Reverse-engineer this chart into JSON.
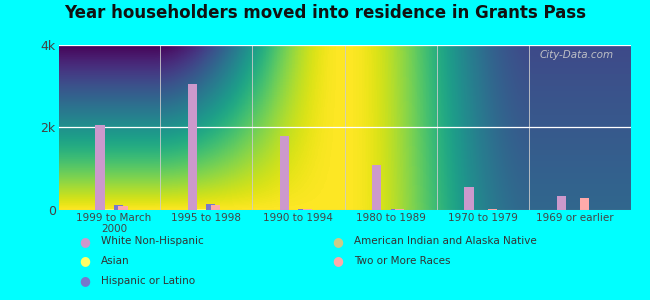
{
  "title": "Year householders moved into residence in Grants Pass",
  "categories": [
    "1999 to March\n2000",
    "1995 to 1998",
    "1990 to 1994",
    "1980 to 1989",
    "1970 to 1979",
    "1969 or earlier"
  ],
  "series": {
    "White Non-Hispanic": [
      2050,
      3050,
      1800,
      1100,
      550,
      350
    ],
    "Asian": [
      15,
      20,
      10,
      5,
      5,
      5
    ],
    "Hispanic or Latino": [
      120,
      150,
      30,
      20,
      0,
      0
    ],
    "American Indian and Alaska Native": [
      10,
      10,
      5,
      5,
      5,
      5
    ],
    "Two or More Races": [
      100,
      120,
      20,
      20,
      20,
      300
    ]
  },
  "colors": {
    "White Non-Hispanic": "#cc99cc",
    "Asian": "#ffff66",
    "Hispanic or Latino": "#7777cc",
    "American Indian and Alaska Native": "#cccc88",
    "Two or More Races": "#ffaaaa"
  },
  "bar_width": 0.1,
  "ylim": [
    0,
    4000
  ],
  "ytick_labels": [
    "0",
    "2k",
    "4k"
  ],
  "ytick_vals": [
    0,
    2000,
    4000
  ],
  "background_color": "#00ffff",
  "watermark": "City-Data.com",
  "legend_col1": [
    "White Non-Hispanic",
    "Asian",
    "Hispanic or Latino"
  ],
  "legend_col2": [
    "American Indian and Alaska Native",
    "Two or More Races"
  ]
}
